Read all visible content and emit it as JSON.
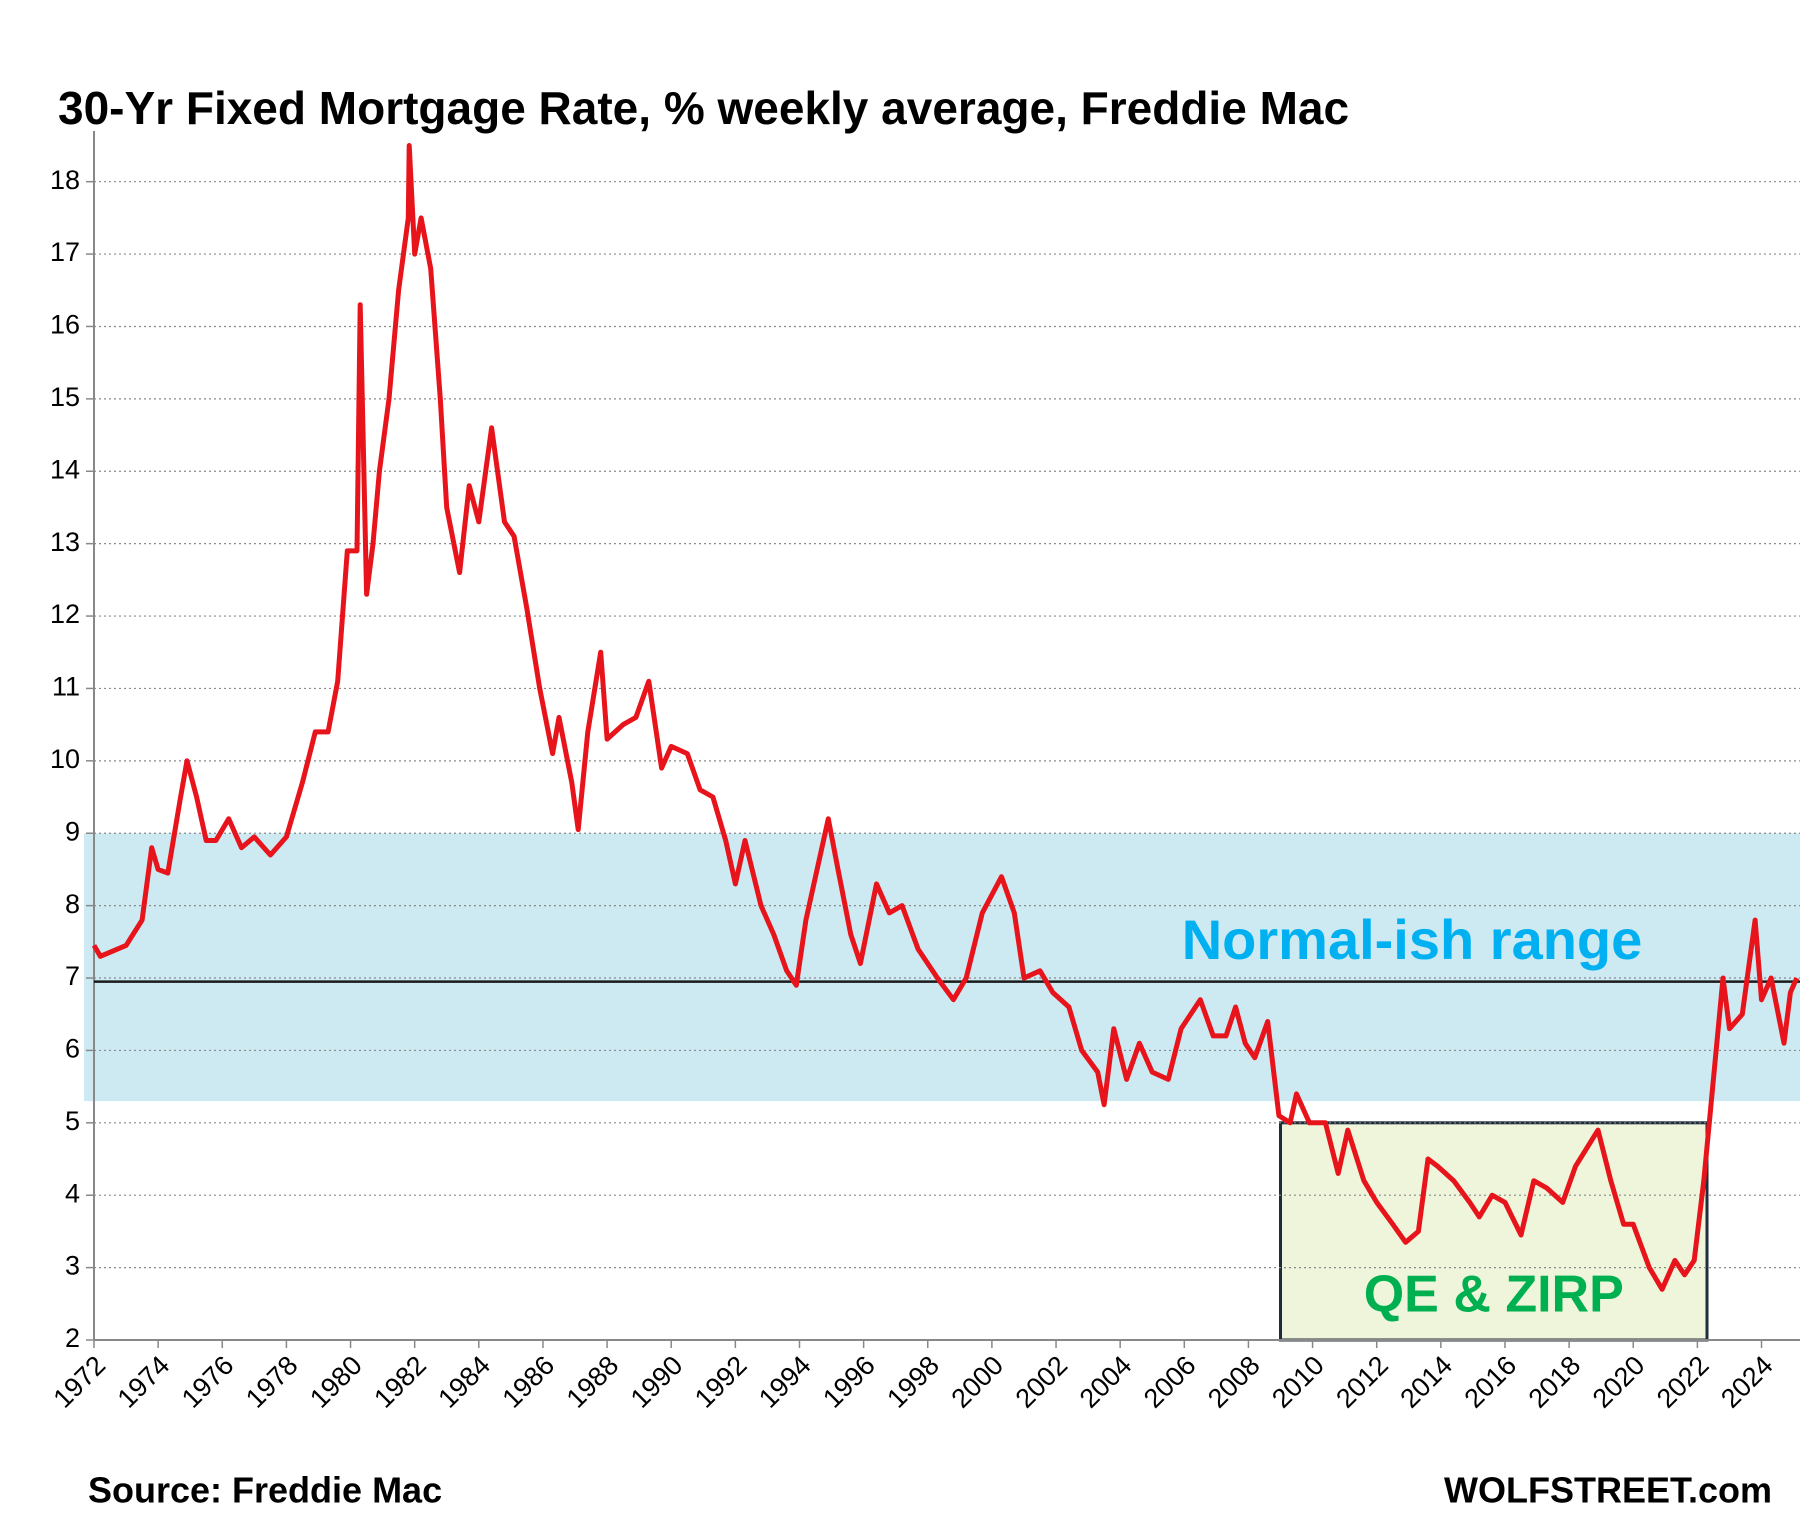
{
  "chart_data": {
    "type": "line",
    "title": "30-Yr Fixed Mortgage Rate, % weekly average, Freddie Mac",
    "source": "Source: Freddie Mac",
    "credit": "WOLFSTREET.com",
    "color": "#e8141b",
    "x": [
      1972.0,
      1972.2,
      1973.0,
      1973.5,
      1973.8,
      1974.0,
      1974.3,
      1974.7,
      1974.9,
      1975.2,
      1975.5,
      1975.8,
      1976.2,
      1976.6,
      1977.0,
      1977.5,
      1978.0,
      1978.5,
      1978.9,
      1979.3,
      1979.6,
      1979.9,
      1980.2,
      1980.3,
      1980.5,
      1980.7,
      1980.9,
      1981.2,
      1981.5,
      1981.8,
      1981.83,
      1982.0,
      1982.2,
      1982.5,
      1982.8,
      1983.0,
      1983.4,
      1983.7,
      1984.0,
      1984.4,
      1984.8,
      1985.1,
      1985.5,
      1985.9,
      1986.3,
      1986.5,
      1986.9,
      1987.1,
      1987.4,
      1987.8,
      1988.0,
      1988.5,
      1988.9,
      1989.3,
      1989.7,
      1990.0,
      1990.5,
      1990.9,
      1991.3,
      1991.7,
      1992.0,
      1992.3,
      1992.8,
      1993.2,
      1993.6,
      1993.9,
      1994.2,
      1994.6,
      1994.9,
      1995.2,
      1995.6,
      1995.9,
      1996.4,
      1996.8,
      1997.2,
      1997.7,
      1998.3,
      1998.8,
      1999.2,
      1999.7,
      2000.3,
      2000.7,
      2001.0,
      2001.5,
      2001.9,
      2002.4,
      2002.8,
      2003.3,
      2003.5,
      2003.8,
      2004.2,
      2004.6,
      2005.0,
      2005.5,
      2005.9,
      2006.5,
      2006.9,
      2007.3,
      2007.6,
      2007.9,
      2008.2,
      2008.6,
      2008.95,
      2009.3,
      2009.5,
      2009.9,
      2010.4,
      2010.8,
      2011.1,
      2011.6,
      2012.0,
      2012.5,
      2012.9,
      2013.3,
      2013.6,
      2013.9,
      2014.4,
      2014.9,
      2015.2,
      2015.6,
      2016.0,
      2016.5,
      2016.9,
      2017.3,
      2017.8,
      2018.2,
      2018.9,
      2019.3,
      2019.7,
      2020.0,
      2020.5,
      2020.9,
      2021.3,
      2021.6,
      2021.9,
      2022.2,
      2022.5,
      2022.8,
      2023.0,
      2023.4,
      2023.8,
      2024.0,
      2024.3,
      2024.7,
      2024.9,
      2025.1
    ],
    "values": [
      7.45,
      7.3,
      7.45,
      7.8,
      8.8,
      8.5,
      8.45,
      9.5,
      10.0,
      9.5,
      8.9,
      8.9,
      9.2,
      8.8,
      8.95,
      8.7,
      8.95,
      9.7,
      10.4,
      10.4,
      11.1,
      12.9,
      12.9,
      16.3,
      12.3,
      13.0,
      14.0,
      15.0,
      16.5,
      17.5,
      18.5,
      17.0,
      17.5,
      16.8,
      15.0,
      13.5,
      12.6,
      13.8,
      13.3,
      14.6,
      13.3,
      13.1,
      12.1,
      11.0,
      10.1,
      10.6,
      9.7,
      9.05,
      10.4,
      11.5,
      10.3,
      10.5,
      10.6,
      11.1,
      9.9,
      10.2,
      10.1,
      9.6,
      9.5,
      8.9,
      8.3,
      8.9,
      8.0,
      7.6,
      7.1,
      6.9,
      7.8,
      8.6,
      9.2,
      8.5,
      7.6,
      7.2,
      8.3,
      7.9,
      8.0,
      7.4,
      7.0,
      6.7,
      7.0,
      7.9,
      8.4,
      7.9,
      7.0,
      7.1,
      6.8,
      6.6,
      6.0,
      5.7,
      5.25,
      6.3,
      5.6,
      6.1,
      5.7,
      5.6,
      6.3,
      6.7,
      6.2,
      6.2,
      6.6,
      6.1,
      5.9,
      6.4,
      5.1,
      5.0,
      5.4,
      5.0,
      5.0,
      4.3,
      4.9,
      4.2,
      3.9,
      3.6,
      3.35,
      3.5,
      4.5,
      4.4,
      4.2,
      3.9,
      3.7,
      4.0,
      3.9,
      3.45,
      4.2,
      4.1,
      3.9,
      4.4,
      4.9,
      4.2,
      3.6,
      3.6,
      3.0,
      2.7,
      3.1,
      2.9,
      3.1,
      4.2,
      5.6,
      7.0,
      6.3,
      6.5,
      7.8,
      6.7,
      7.0,
      6.1,
      6.8,
      7.0
    ],
    "xlim": [
      1972,
      2025.2
    ],
    "xticks": [
      1972,
      1974,
      1976,
      1978,
      1980,
      1982,
      1984,
      1986,
      1988,
      1990,
      1992,
      1994,
      1996,
      1998,
      2000,
      2002,
      2004,
      2006,
      2008,
      2010,
      2012,
      2014,
      2016,
      2018,
      2020,
      2022,
      2024
    ],
    "ylim": [
      2,
      18.7
    ],
    "yticks": [
      2,
      3,
      4,
      5,
      6,
      7,
      8,
      9,
      10,
      11,
      12,
      13,
      14,
      15,
      16,
      17,
      18
    ],
    "grid": true,
    "band": {
      "label": "Normal-ish range",
      "ylim": [
        5.3,
        9.0
      ],
      "color": "#cdeaf3",
      "label_color": "#00b0f0"
    },
    "reference_line": {
      "value": 6.95,
      "color": "#1a1a1a"
    },
    "box": {
      "label": "QE & ZIRP",
      "xlim": [
        2009.0,
        2022.3
      ],
      "ylim": [
        2,
        5
      ],
      "color": "#eef5da",
      "label_color": "#00b050"
    }
  }
}
